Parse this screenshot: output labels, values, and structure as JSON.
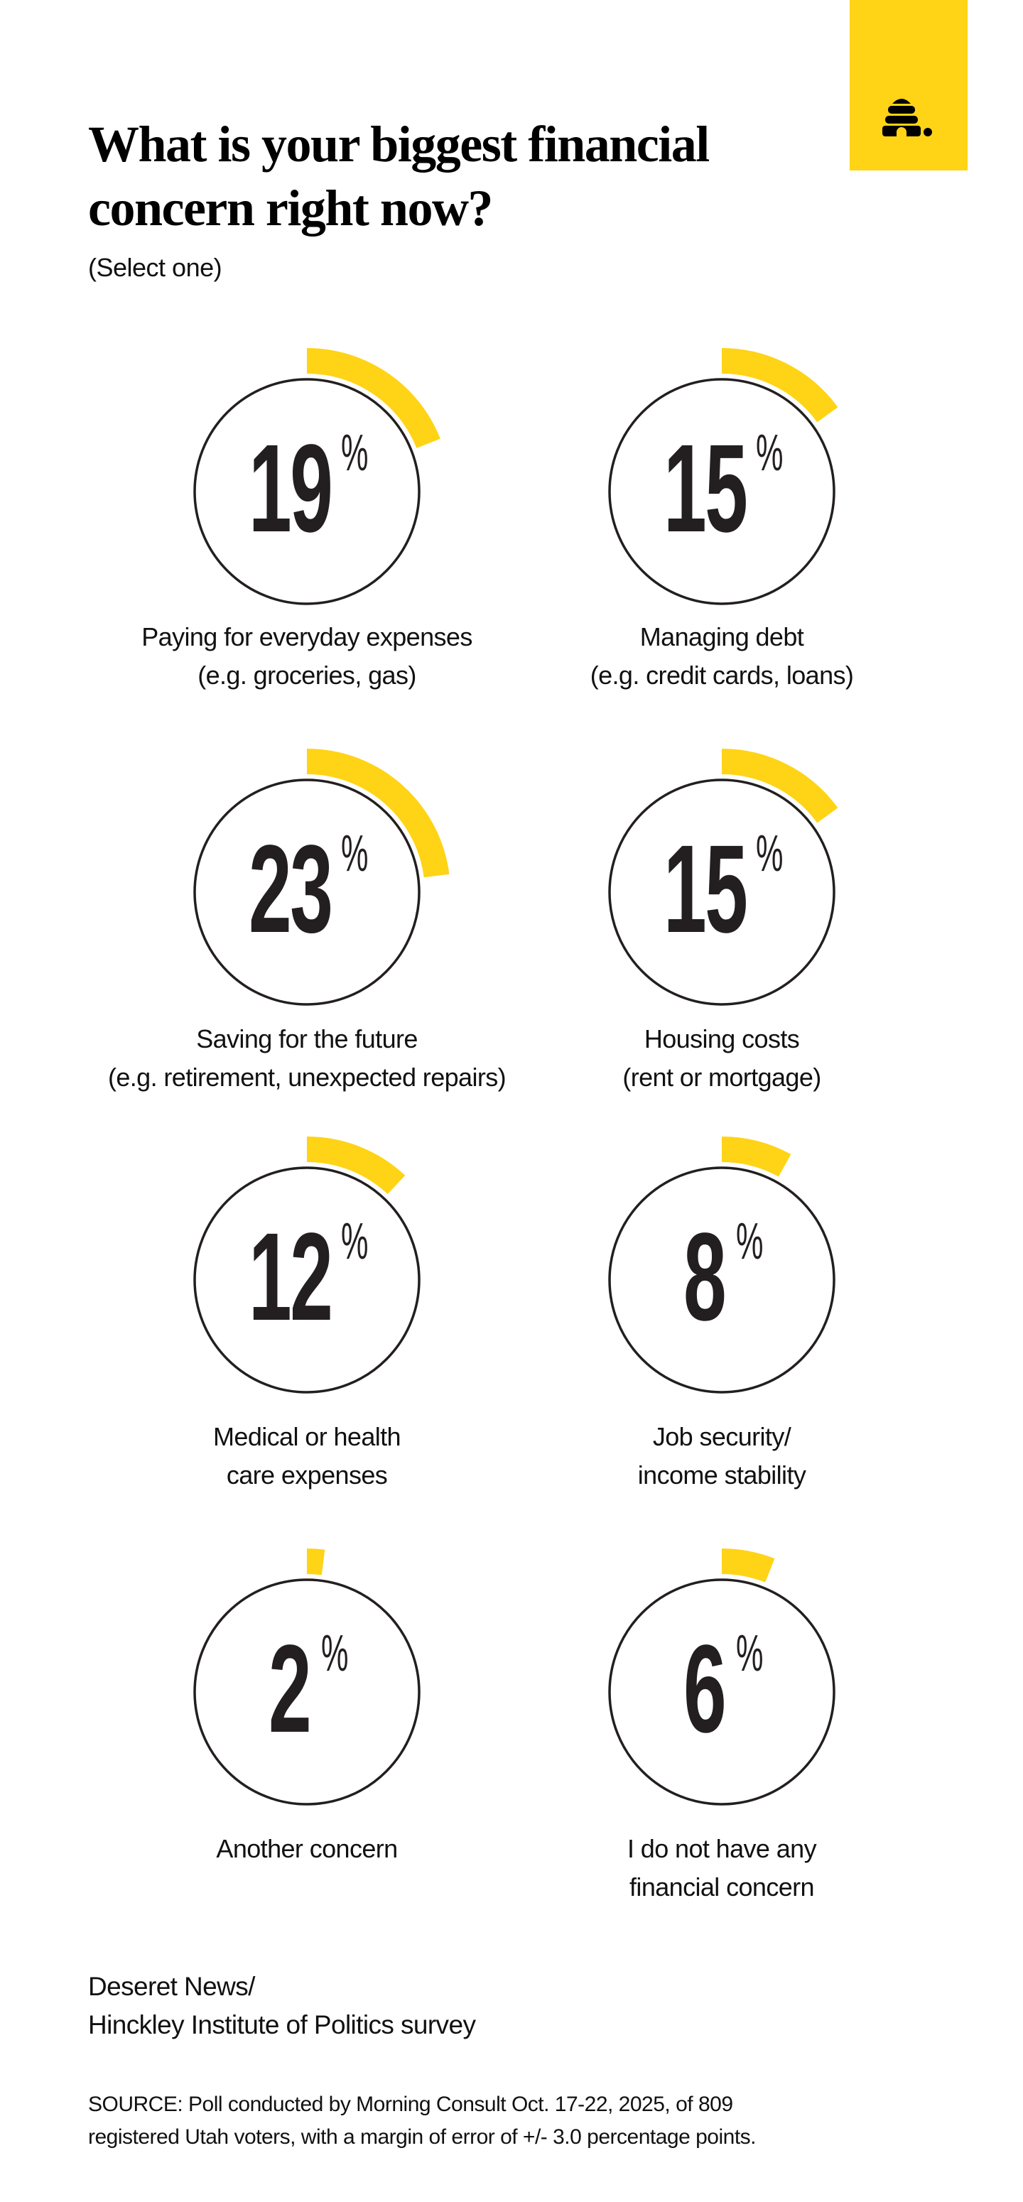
{
  "header": {
    "title_line1": "What is your biggest financial",
    "title_line2": "concern right now?",
    "subtitle": "(Select one)",
    "logo_icon": "beehive-icon"
  },
  "colors": {
    "accent": "#FFD316",
    "ring": "#231f20",
    "text": "#111111"
  },
  "chart_data": {
    "type": "pie",
    "title": "What is your biggest financial concern right now?",
    "subtitle": "(Select one)",
    "unit": "%",
    "categories": [
      "Paying for everyday expenses (e.g. groceries, gas)",
      "Managing debt (e.g. credit cards, loans)",
      "Saving for the future (e.g. retirement, unexpected repairs)",
      "Housing costs (rent or mortgage)",
      "Medical or health care expenses",
      "Job security/ income stability",
      "Another concern",
      "I do not have any financial concern"
    ],
    "values": [
      19,
      15,
      23,
      15,
      12,
      8,
      2,
      6
    ],
    "layout": "2-column grid of ring gauges, arc starts at 12 o'clock clockwise"
  },
  "items": [
    {
      "value": "19",
      "pct": "%",
      "label_line1": "Paying for everyday expenses",
      "label_line2": "(e.g. groceries, gas)"
    },
    {
      "value": "15",
      "pct": "%",
      "label_line1": "Managing debt",
      "label_line2": "(e.g. credit cards, loans)"
    },
    {
      "value": "23",
      "pct": "%",
      "label_line1": "Saving for the future",
      "label_line2": "(e.g. retirement, unexpected repairs)"
    },
    {
      "value": "15",
      "pct": "%",
      "label_line1": "Housing costs",
      "label_line2": "(rent or mortgage)"
    },
    {
      "value": "12",
      "pct": "%",
      "label_line1": "Medical or health",
      "label_line2": "care expenses"
    },
    {
      "value": "8",
      "pct": "%",
      "label_line1": "Job security/",
      "label_line2": "income stability"
    },
    {
      "value": "2",
      "pct": "%",
      "label_line1": "Another concern",
      "label_line2": ""
    },
    {
      "value": "6",
      "pct": "%",
      "label_line1": "I do not have any",
      "label_line2": "financial concern"
    }
  ],
  "footer": {
    "credit_line1": "Deseret News/",
    "credit_line2": "Hinckley Institute of Politics survey",
    "source_line1": "SOURCE: Poll conducted by Morning Consult Oct. 17-22, 2025, of 809",
    "source_line2": "registered Utah voters, with a margin of error of +/- 3.0 percentage points."
  }
}
